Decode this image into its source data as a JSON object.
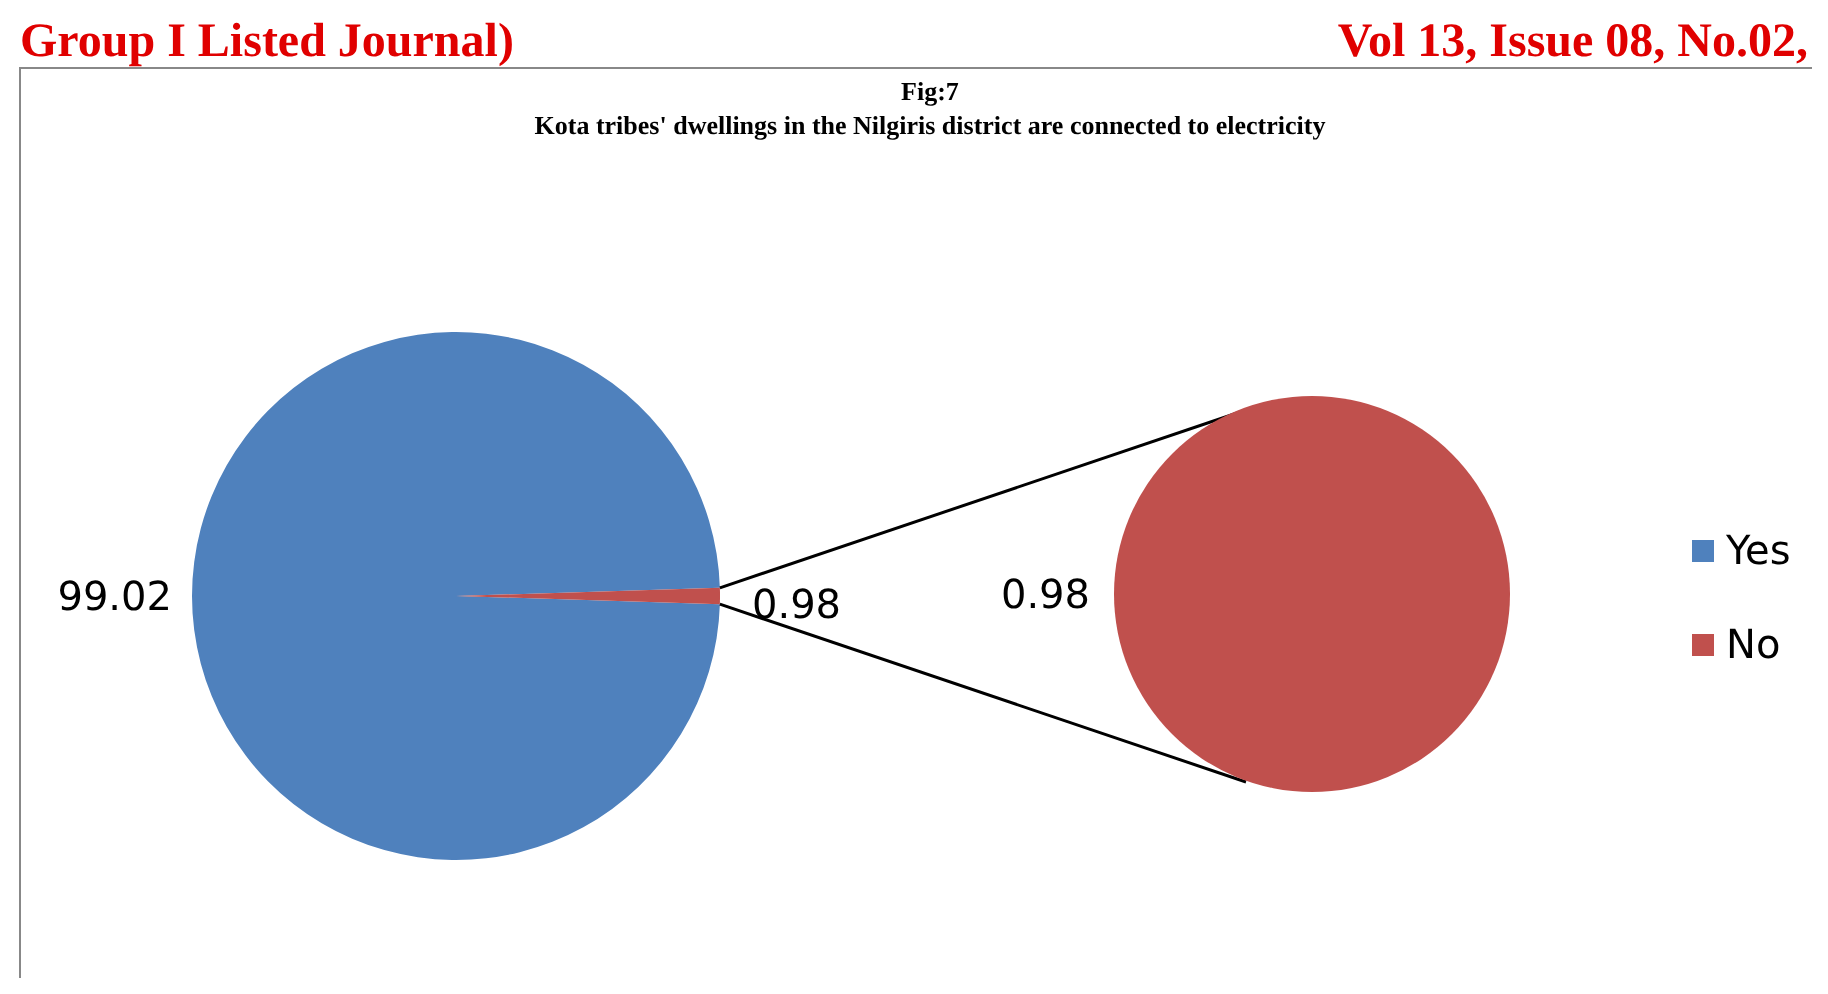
{
  "chart_data": {
    "type": "pie",
    "title": "Fig:7",
    "subtitle": "Kota tribes' dwellings in the Nilgiris district are connected to electricity",
    "categories": [
      "Yes",
      "No"
    ],
    "colors": [
      "#4f81bd",
      "#c0504d"
    ],
    "data_labels": true,
    "legend": "right",
    "series": [
      {
        "values": [
          99.02,
          0.98
        ]
      },
      {
        "values": [
          null,
          0.98
        ],
        "color": "#c0504d"
      }
    ],
    "annotations": [
      "Group I Listed Journal)",
      "Vol 13, Issue 08, No.02,"
    ]
  }
}
